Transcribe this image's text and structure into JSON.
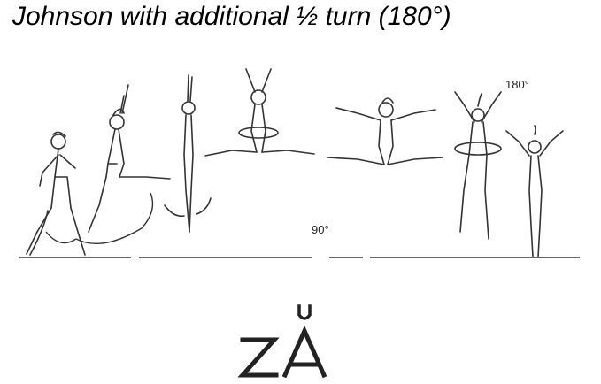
{
  "title": "Johnson with additional ½ turn (180°)",
  "annotations": {
    "angle_90": "90°",
    "angle_180": "180°"
  },
  "symbol": {
    "name": "Johnson symbol"
  }
}
